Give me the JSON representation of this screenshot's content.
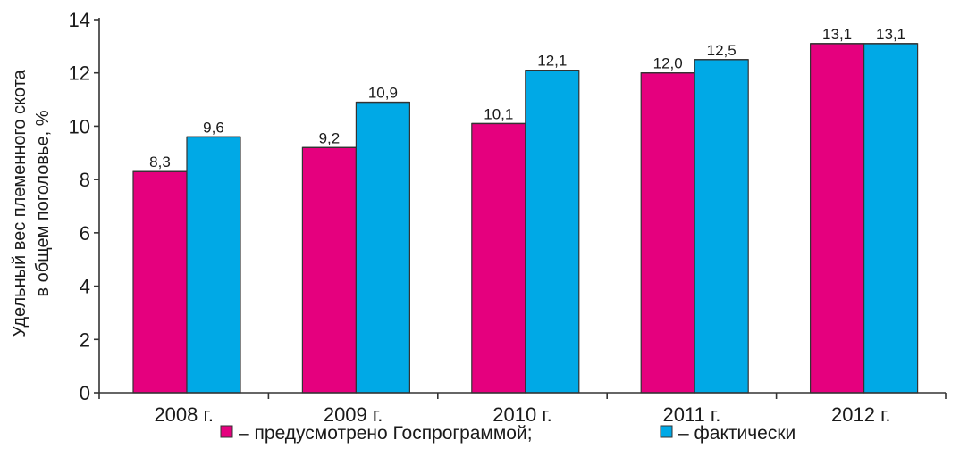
{
  "chart_data": {
    "type": "bar",
    "categories": [
      "2008 г.",
      "2009 г.",
      "2010 г.",
      "2011 г.",
      "2012 г."
    ],
    "series": [
      {
        "name": "– предусмотрено Госпрограммой;",
        "color": "#e5007e",
        "values": [
          8.3,
          9.2,
          10.1,
          12.0,
          13.1
        ],
        "labels": [
          "8,3",
          "9,2",
          "10,1",
          "12,0",
          "13,1"
        ]
      },
      {
        "name": "– фактически",
        "color": "#00a9e6",
        "values": [
          9.6,
          10.9,
          12.1,
          12.5,
          13.1
        ],
        "labels": [
          "9,6",
          "10,9",
          "12,1",
          "12,5",
          "13,1"
        ]
      }
    ],
    "ylabel_lines": [
      "Удельный вес племенного скота",
      "в общем поголовье, %"
    ],
    "xlabel": "",
    "ylim": [
      0,
      14
    ],
    "yticks": [
      0,
      2,
      4,
      6,
      8,
      10,
      12,
      14
    ],
    "grid": false,
    "legend_position": "bottom"
  }
}
